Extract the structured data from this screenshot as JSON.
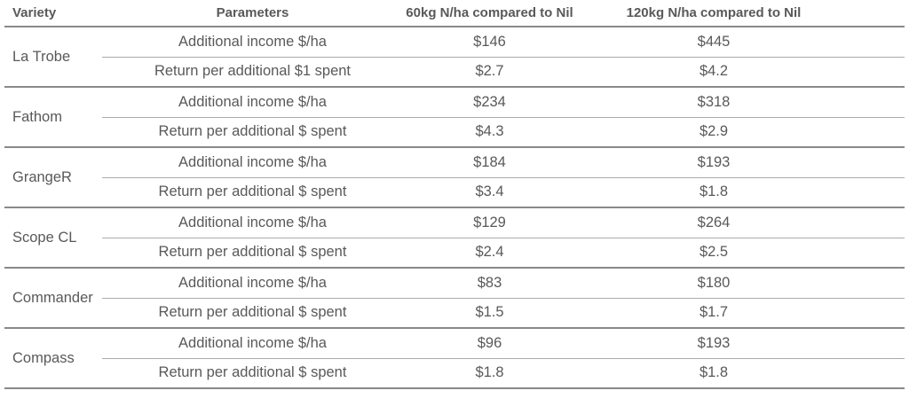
{
  "colors": {
    "text-color": "#58595b",
    "rule-strong": "#87898c",
    "rule-light": "#ababad"
  },
  "table": {
    "headers": [
      "Variety",
      "Parameters",
      "60kg N/ha compared to Nil",
      "120kg N/ha compared to Nil"
    ],
    "groups": [
      {
        "variety": "La Trobe",
        "rows": [
          {
            "parameter": "Additional income $/ha",
            "n60": "$146",
            "n120": "$445"
          },
          {
            "parameter": "Return per additional $1 spent",
            "n60": "$2.7",
            "n120": "$4.2"
          }
        ]
      },
      {
        "variety": "Fathom",
        "rows": [
          {
            "parameter": "Additional income $/ha",
            "n60": "$234",
            "n120": "$318"
          },
          {
            "parameter": "Return per additional $ spent",
            "n60": "$4.3",
            "n120": "$2.9"
          }
        ]
      },
      {
        "variety": "GrangeR",
        "rows": [
          {
            "parameter": "Additional income $/ha",
            "n60": "$184",
            "n120": "$193"
          },
          {
            "parameter": "Return per additional $ spent",
            "n60": "$3.4",
            "n120": "$1.8"
          }
        ]
      },
      {
        "variety": "Scope CL",
        "rows": [
          {
            "parameter": "Additional income $/ha",
            "n60": "$129",
            "n120": "$264"
          },
          {
            "parameter": "Return per additional $ spent",
            "n60": "$2.4",
            "n120": "$2.5"
          }
        ]
      },
      {
        "variety": "Commander",
        "rows": [
          {
            "parameter": "Additional income $/ha",
            "n60": "$83",
            "n120": "$180"
          },
          {
            "parameter": "Return per additional $ spent",
            "n60": "$1.5",
            "n120": "$1.7"
          }
        ]
      },
      {
        "variety": "Compass",
        "rows": [
          {
            "parameter": "Additional income $/ha",
            "n60": "$96",
            "n120": "$193"
          },
          {
            "parameter": "Return per additional $ spent",
            "n60": "$1.8",
            "n120": "$1.8"
          }
        ]
      }
    ]
  }
}
